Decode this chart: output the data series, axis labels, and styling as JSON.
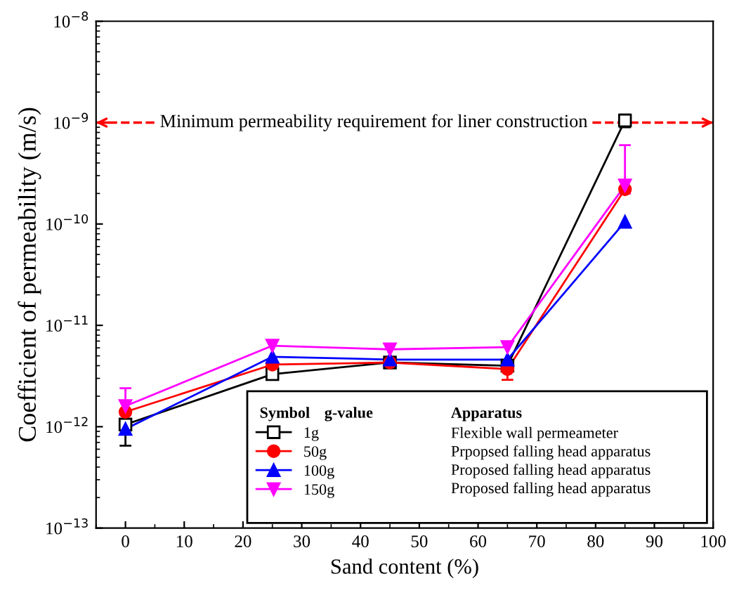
{
  "chart_data": {
    "type": "line",
    "xlabel": "Sand content (%)",
    "ylabel": "Coefficient of permeability (m/s)",
    "log": "y",
    "x": [
      0,
      25,
      45,
      65,
      85
    ],
    "xlim": [
      -5,
      100
    ],
    "xticks": [
      0,
      10,
      20,
      30,
      40,
      50,
      60,
      70,
      80,
      90,
      100
    ],
    "ylim": [
      1e-13,
      1e-08
    ],
    "yticks": [
      {
        "value": 1e-13,
        "label": "10$^{−13}$"
      },
      {
        "value": 1e-12,
        "label": "10$^{−12}$"
      },
      {
        "value": 1e-11,
        "label": "10$^{−11}$"
      },
      {
        "value": 1e-10,
        "label": "10$^{−10}$"
      },
      {
        "value": 1e-09,
        "label": "10$^{−9}$"
      },
      {
        "value": 1e-08,
        "label": "10$^{−8}$"
      }
    ],
    "grid": false,
    "series": [
      {
        "name": "1g",
        "color": "#000000",
        "marker": "square",
        "values": [
          1.05e-12,
          3.3e-12,
          4.3e-12,
          4e-12,
          1.05e-09
        ],
        "errors": [
          [
            6.5e-13,
            1.4e-12
          ],
          null,
          null,
          null,
          [
            9e-10,
            1.2e-09
          ]
        ]
      },
      {
        "name": "50g",
        "color": "#ff0000",
        "marker": "circle",
        "values": [
          1.4e-12,
          4.1e-12,
          4.3e-12,
          3.7e-12,
          2.2e-10
        ],
        "errors": [
          null,
          null,
          null,
          [
            2.9e-12,
            4.4e-12
          ],
          null
        ]
      },
      {
        "name": "100g",
        "color": "#0000ff",
        "marker": "triangle",
        "values": [
          9.5e-13,
          4.9e-12,
          4.6e-12,
          4.6e-12,
          1.05e-10
        ],
        "errors": [
          null,
          null,
          null,
          null,
          null
        ]
      },
      {
        "name": "150g",
        "color": "#ff00ff",
        "marker": "triangle_down",
        "values": [
          1.6e-12,
          6.3e-12,
          5.8e-12,
          6.1e-12,
          2.4e-10
        ],
        "errors": [
          [
            1.3e-12,
            2.4e-12
          ],
          null,
          null,
          null,
          [
            2e-10,
            6e-10
          ]
        ]
      }
    ],
    "ref_lines": [
      {
        "axis": "y",
        "value": 1e-09,
        "label": "Minimum permeability requirement for liner construction",
        "color": "#ff0000",
        "line_style": "dashed"
      }
    ],
    "annotations": [
      "Symbol",
      "g-value",
      "Apparatus",
      "Flexible wall permeameter",
      "Prpopsed falling head apparatus",
      "Proposed falling head apparatus",
      "Proposed falling head apparatus"
    ],
    "legend": "bottom"
  }
}
